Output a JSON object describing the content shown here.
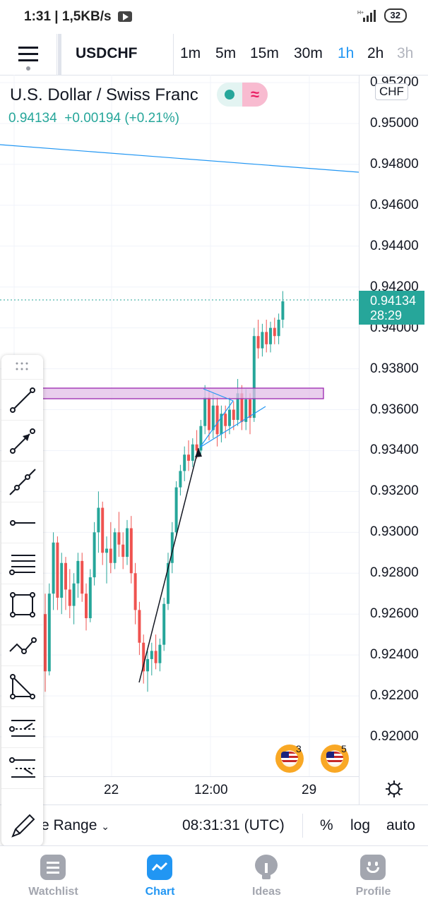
{
  "status_bar": {
    "time": "1:31",
    "network_speed": "1,5KB/s",
    "battery": "32"
  },
  "toolbar": {
    "symbol": "USDCHF",
    "timeframes": [
      "1m",
      "5m",
      "15m",
      "30m",
      "1h",
      "2h",
      "3h"
    ],
    "active_timeframe": "1h"
  },
  "legend": {
    "title": "U.S. Dollar / Swiss Franc",
    "last": "0.94134",
    "change": "+0.00194",
    "change_pct": "(+0.21%)"
  },
  "price_axis": {
    "currency": "CHF",
    "labels": [
      "0.95200",
      "0.95000",
      "0.94800",
      "0.94600",
      "0.94400",
      "0.94200",
      "0.94000",
      "0.93800",
      "0.93600",
      "0.93400",
      "0.93200",
      "0.93000",
      "0.92800",
      "0.92600",
      "0.92400",
      "0.92200",
      "0.92000"
    ],
    "last_price": "0.94134",
    "countdown": "28:29"
  },
  "time_axis": {
    "labels": [
      "22",
      "12:00",
      "29"
    ]
  },
  "events": [
    {
      "count": "3"
    },
    {
      "count": "5"
    }
  ],
  "bottom_bar": {
    "range_label": "e Range",
    "clock": "08:31:31 (UTC)",
    "percent": "%",
    "log": "log",
    "auto": "auto"
  },
  "nav": [
    {
      "label": "Watchlist",
      "active": false
    },
    {
      "label": "Chart",
      "active": true
    },
    {
      "label": "Ideas",
      "active": false
    },
    {
      "label": "Profile",
      "active": false
    }
  ],
  "colors": {
    "accent": "#2196f3",
    "up": "#26a69a",
    "down": "#ef5350",
    "zone": "#b39ddb"
  },
  "chart_data": {
    "type": "candlestick",
    "symbol": "USDCHF",
    "interval": "1h",
    "ylim": [
      0.919,
      0.953
    ],
    "candles": [
      {
        "o": 0.926,
        "h": 0.927,
        "l": 0.9222,
        "c": 0.9232
      },
      {
        "o": 0.9232,
        "h": 0.9275,
        "l": 0.923,
        "c": 0.927
      },
      {
        "o": 0.927,
        "h": 0.93,
        "l": 0.9262,
        "c": 0.9295
      },
      {
        "o": 0.9295,
        "h": 0.9298,
        "l": 0.9262,
        "c": 0.9268
      },
      {
        "o": 0.9268,
        "h": 0.929,
        "l": 0.926,
        "c": 0.9285
      },
      {
        "o": 0.9285,
        "h": 0.9288,
        "l": 0.9262,
        "c": 0.9272
      },
      {
        "o": 0.9272,
        "h": 0.9282,
        "l": 0.9258,
        "c": 0.9264
      },
      {
        "o": 0.9264,
        "h": 0.928,
        "l": 0.9255,
        "c": 0.9275
      },
      {
        "o": 0.9275,
        "h": 0.929,
        "l": 0.9268,
        "c": 0.9286
      },
      {
        "o": 0.9286,
        "h": 0.929,
        "l": 0.9266,
        "c": 0.927
      },
      {
        "o": 0.927,
        "h": 0.9275,
        "l": 0.9252,
        "c": 0.9258
      },
      {
        "o": 0.9258,
        "h": 0.9282,
        "l": 0.9256,
        "c": 0.9278
      },
      {
        "o": 0.9278,
        "h": 0.9305,
        "l": 0.9274,
        "c": 0.93
      },
      {
        "o": 0.93,
        "h": 0.932,
        "l": 0.929,
        "c": 0.9312
      },
      {
        "o": 0.9312,
        "h": 0.9315,
        "l": 0.9284,
        "c": 0.929
      },
      {
        "o": 0.929,
        "h": 0.9298,
        "l": 0.9275,
        "c": 0.9292
      },
      {
        "o": 0.9292,
        "h": 0.9305,
        "l": 0.928,
        "c": 0.9285
      },
      {
        "o": 0.9285,
        "h": 0.9302,
        "l": 0.9282,
        "c": 0.93
      },
      {
        "o": 0.93,
        "h": 0.931,
        "l": 0.9288,
        "c": 0.9294
      },
      {
        "o": 0.9294,
        "h": 0.93,
        "l": 0.9282,
        "c": 0.9288
      },
      {
        "o": 0.9288,
        "h": 0.9306,
        "l": 0.9284,
        "c": 0.9302
      },
      {
        "o": 0.9302,
        "h": 0.9308,
        "l": 0.9275,
        "c": 0.928
      },
      {
        "o": 0.928,
        "h": 0.9285,
        "l": 0.9255,
        "c": 0.9262
      },
      {
        "o": 0.9262,
        "h": 0.9266,
        "l": 0.924,
        "c": 0.9246
      },
      {
        "o": 0.9246,
        "h": 0.925,
        "l": 0.9226,
        "c": 0.9232
      },
      {
        "o": 0.9232,
        "h": 0.9242,
        "l": 0.9222,
        "c": 0.9238
      },
      {
        "o": 0.9238,
        "h": 0.9246,
        "l": 0.923,
        "c": 0.9242
      },
      {
        "o": 0.9242,
        "h": 0.925,
        "l": 0.9233,
        "c": 0.9236
      },
      {
        "o": 0.9236,
        "h": 0.9248,
        "l": 0.9232,
        "c": 0.9245
      },
      {
        "o": 0.9245,
        "h": 0.9268,
        "l": 0.9242,
        "c": 0.9265
      },
      {
        "o": 0.9265,
        "h": 0.929,
        "l": 0.9262,
        "c": 0.9285
      },
      {
        "o": 0.9285,
        "h": 0.9305,
        "l": 0.928,
        "c": 0.93
      },
      {
        "o": 0.93,
        "h": 0.9325,
        "l": 0.9298,
        "c": 0.9322
      },
      {
        "o": 0.9322,
        "h": 0.9333,
        "l": 0.9318,
        "c": 0.933
      },
      {
        "o": 0.933,
        "h": 0.9342,
        "l": 0.9325,
        "c": 0.9338
      },
      {
        "o": 0.9338,
        "h": 0.9345,
        "l": 0.933,
        "c": 0.9335
      },
      {
        "o": 0.9335,
        "h": 0.9346,
        "l": 0.9332,
        "c": 0.9343
      },
      {
        "o": 0.9343,
        "h": 0.935,
        "l": 0.9336,
        "c": 0.934
      },
      {
        "o": 0.934,
        "h": 0.9355,
        "l": 0.9338,
        "c": 0.9352
      },
      {
        "o": 0.9352,
        "h": 0.9372,
        "l": 0.9348,
        "c": 0.9366
      },
      {
        "o": 0.9366,
        "h": 0.937,
        "l": 0.9345,
        "c": 0.935
      },
      {
        "o": 0.935,
        "h": 0.9368,
        "l": 0.9346,
        "c": 0.9362
      },
      {
        "o": 0.9362,
        "h": 0.9366,
        "l": 0.9342,
        "c": 0.9348
      },
      {
        "o": 0.9348,
        "h": 0.9362,
        "l": 0.9344,
        "c": 0.9358
      },
      {
        "o": 0.9358,
        "h": 0.9362,
        "l": 0.9346,
        "c": 0.9352
      },
      {
        "o": 0.9352,
        "h": 0.9366,
        "l": 0.9348,
        "c": 0.936
      },
      {
        "o": 0.936,
        "h": 0.9364,
        "l": 0.935,
        "c": 0.9355
      },
      {
        "o": 0.9355,
        "h": 0.9375,
        "l": 0.9352,
        "c": 0.9368
      },
      {
        "o": 0.9368,
        "h": 0.9372,
        "l": 0.935,
        "c": 0.9354
      },
      {
        "o": 0.9354,
        "h": 0.937,
        "l": 0.935,
        "c": 0.9365
      },
      {
        "o": 0.9365,
        "h": 0.9368,
        "l": 0.9348,
        "c": 0.9356
      },
      {
        "o": 0.9356,
        "h": 0.94,
        "l": 0.9354,
        "c": 0.9396
      },
      {
        "o": 0.9396,
        "h": 0.9404,
        "l": 0.9385,
        "c": 0.939
      },
      {
        "o": 0.939,
        "h": 0.9402,
        "l": 0.9386,
        "c": 0.9398
      },
      {
        "o": 0.9398,
        "h": 0.9404,
        "l": 0.9388,
        "c": 0.9392
      },
      {
        "o": 0.9392,
        "h": 0.9403,
        "l": 0.9388,
        "c": 0.94
      },
      {
        "o": 0.94,
        "h": 0.9405,
        "l": 0.9392,
        "c": 0.9396
      },
      {
        "o": 0.9396,
        "h": 0.9407,
        "l": 0.9392,
        "c": 0.9404
      },
      {
        "o": 0.9404,
        "h": 0.9418,
        "l": 0.94,
        "c": 0.9413
      }
    ]
  }
}
